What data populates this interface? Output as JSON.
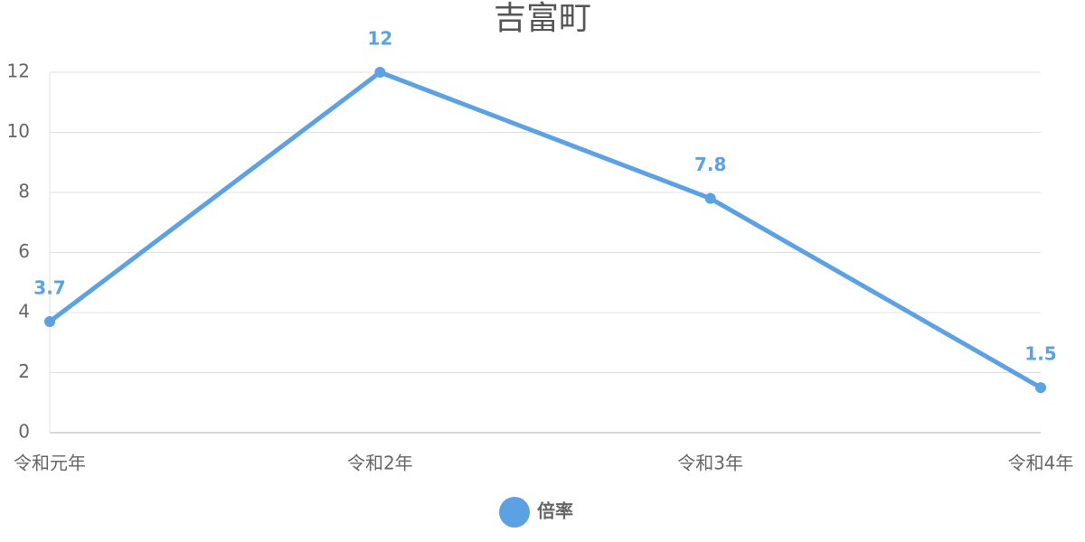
{
  "chart_data": {
    "type": "line",
    "title": "吉富町",
    "categories": [
      "令和元年",
      "令和2年",
      "令和3年",
      "令和4年"
    ],
    "series": [
      {
        "name": "倍率",
        "color": "#5ba1e3",
        "values": [
          3.7,
          12,
          7.8,
          1.5
        ]
      }
    ],
    "ylim": [
      0,
      12
    ],
    "yticks": [
      0,
      2,
      4,
      6,
      8,
      10,
      12
    ],
    "grid": true,
    "legend": "bottom",
    "data_labels": true
  }
}
